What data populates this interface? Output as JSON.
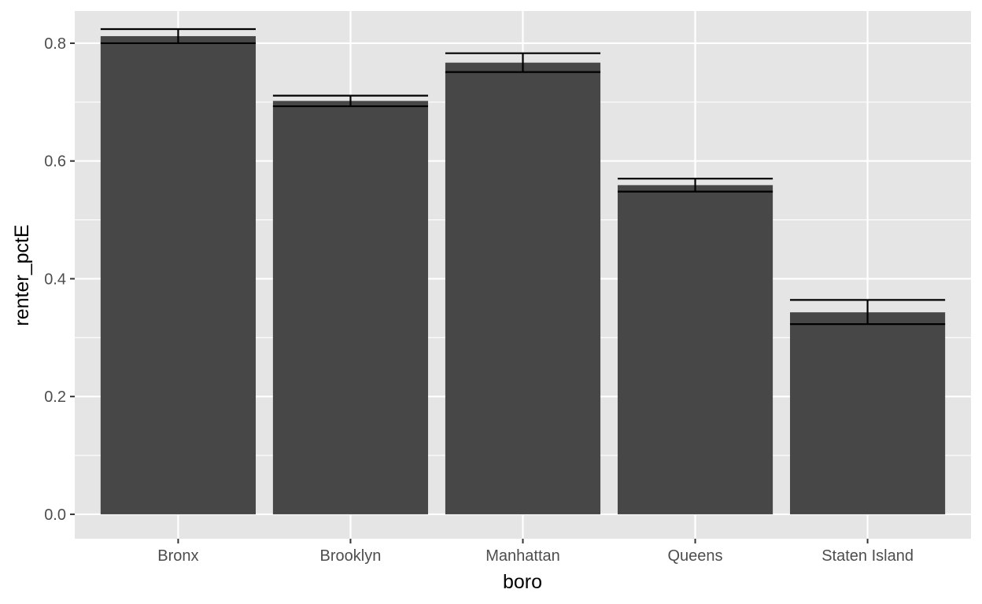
{
  "chart_data": {
    "type": "bar",
    "xlabel": "boro",
    "ylabel": "renter_pctE",
    "categories": [
      "Bronx",
      "Brooklyn",
      "Manhattan",
      "Queens",
      "Staten Island"
    ],
    "values": [
      0.812,
      0.702,
      0.767,
      0.559,
      0.343
    ],
    "error_low": [
      0.8,
      0.693,
      0.751,
      0.548,
      0.323
    ],
    "error_high": [
      0.824,
      0.711,
      0.783,
      0.57,
      0.364
    ],
    "yticks": [
      "0.0",
      "0.2",
      "0.4",
      "0.6",
      "0.8"
    ],
    "ylim": [
      -0.0415,
      0.8547
    ],
    "grid": true,
    "colors": {
      "panel": "#e5e5e5",
      "bar": "#474747",
      "grid": "#ffffff",
      "errorbar": "#000000",
      "tick": "#333333"
    }
  }
}
